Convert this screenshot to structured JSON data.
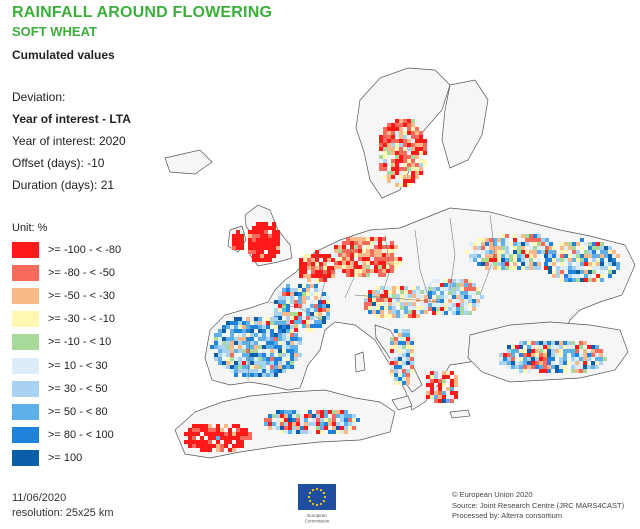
{
  "header": {
    "title": "RAINFALL AROUND FLOWERING",
    "subtitle": "SOFT WHEAT",
    "values_type": "Cumulated values"
  },
  "parameters": {
    "deviation_label": "Deviation:",
    "comparison": "Year of interest - LTA",
    "year": "Year of interest: 2020",
    "offset": "Offset (days): -10",
    "duration": "Duration (days): 21"
  },
  "legend": {
    "unit": "Unit: %",
    "items": [
      {
        "label": ">= -100 - < -80",
        "color": "#ff1a1a"
      },
      {
        "label": ">= -80 - < -50",
        "color": "#f76b5c"
      },
      {
        "label": ">= -50 - < -30",
        "color": "#fbb98a"
      },
      {
        "label": ">= -30 - < -10",
        "color": "#fff7b3"
      },
      {
        "label": ">= -10 - < 10",
        "color": "#a6d99a"
      },
      {
        "label": ">= 10 - < 30",
        "color": "#dcecf8"
      },
      {
        "label": ">= 30 - < 50",
        "color": "#a9d2f2"
      },
      {
        "label": ">= 50 - < 80",
        "color": "#5fb0ea"
      },
      {
        "label": ">= 80 - < 100",
        "color": "#1f84d9"
      },
      {
        "label": ">= 100",
        "color": "#0a5fa8"
      }
    ]
  },
  "footer": {
    "date": "11/06/2020",
    "resolution": "resolution: 25x25 km",
    "credit_1": "© European Union 2020",
    "credit_2": "Source: Joint Research Centre (JRC MARS4CAST)",
    "credit_3": "Processed by: Alterra consortium",
    "logo_text_1": "European",
    "logo_text_2": "Commission"
  },
  "colors": {
    "title_green": "#3cae3c",
    "land_outline": "#555555",
    "ec_blue": "#1f4da0",
    "ec_star": "#ffd400"
  }
}
